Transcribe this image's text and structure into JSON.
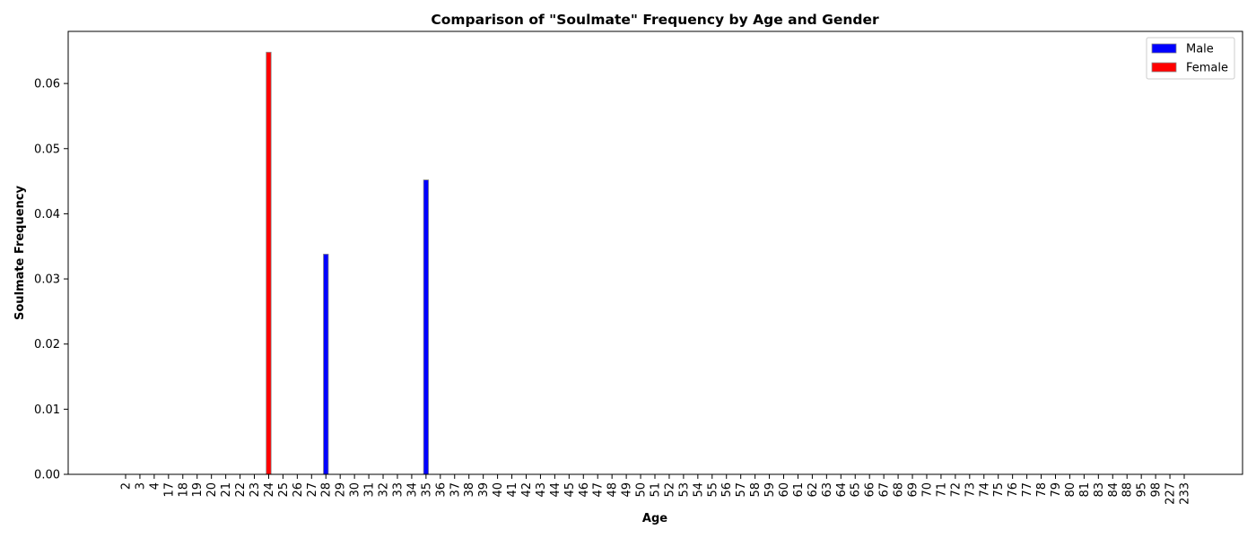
{
  "chart_data": {
    "type": "bar",
    "title": "Comparison of \"Soulmate\" Frequency by Age and Gender",
    "xlabel": "Age",
    "ylabel": "Soulmate Frequency",
    "categories": [
      "2",
      "3",
      "4",
      "17",
      "18",
      "19",
      "20",
      "21",
      "22",
      "23",
      "24",
      "25",
      "26",
      "27",
      "28",
      "29",
      "30",
      "31",
      "32",
      "33",
      "34",
      "35",
      "36",
      "37",
      "38",
      "39",
      "40",
      "41",
      "42",
      "43",
      "44",
      "45",
      "46",
      "47",
      "48",
      "49",
      "50",
      "51",
      "52",
      "53",
      "54",
      "55",
      "56",
      "57",
      "58",
      "59",
      "60",
      "61",
      "62",
      "63",
      "64",
      "65",
      "66",
      "67",
      "68",
      "69",
      "70",
      "71",
      "72",
      "73",
      "74",
      "75",
      "76",
      "77",
      "78",
      "79",
      "80",
      "81",
      "83",
      "84",
      "88",
      "95",
      "98",
      "227",
      "233"
    ],
    "series": [
      {
        "name": "Male",
        "color": "#0000ff",
        "values": [
          0,
          0,
          0,
          0,
          0,
          0,
          0,
          0,
          0,
          0,
          0,
          0,
          0,
          0,
          0.0338,
          0,
          0,
          0,
          0,
          0,
          0,
          0.0452,
          0,
          0,
          0,
          0,
          0,
          0,
          0,
          0,
          0,
          0,
          0,
          0,
          0,
          0,
          0,
          0,
          0,
          0,
          0,
          0,
          0,
          0,
          0,
          0,
          0,
          0,
          0,
          0,
          0,
          0,
          0,
          0,
          0,
          0,
          0,
          0,
          0,
          0,
          0,
          0,
          0,
          0,
          0,
          0,
          0,
          0,
          0,
          0,
          0,
          0,
          0,
          0,
          0
        ]
      },
      {
        "name": "Female",
        "color": "#ff0000",
        "values": [
          0,
          0,
          0,
          0,
          0,
          0,
          0,
          0,
          0,
          0,
          0.0648,
          0,
          0,
          0,
          0,
          0,
          0,
          0,
          0,
          0,
          0,
          0,
          0,
          0,
          0,
          0,
          0,
          0,
          0,
          0,
          0,
          0,
          0,
          0,
          0,
          0,
          0,
          0,
          0,
          0,
          0,
          0,
          0,
          0,
          0,
          0,
          0,
          0,
          0,
          0,
          0,
          0,
          0,
          0,
          0,
          0,
          0,
          0,
          0,
          0,
          0,
          0,
          0,
          0,
          0,
          0,
          0,
          0,
          0,
          0,
          0,
          0,
          0,
          0,
          0
        ]
      }
    ],
    "ylim": [
      0,
      0.068
    ],
    "yticks": [
      "0.00",
      "0.01",
      "0.02",
      "0.03",
      "0.04",
      "0.05",
      "0.06"
    ],
    "grid": false,
    "legend_position": "top-right"
  }
}
